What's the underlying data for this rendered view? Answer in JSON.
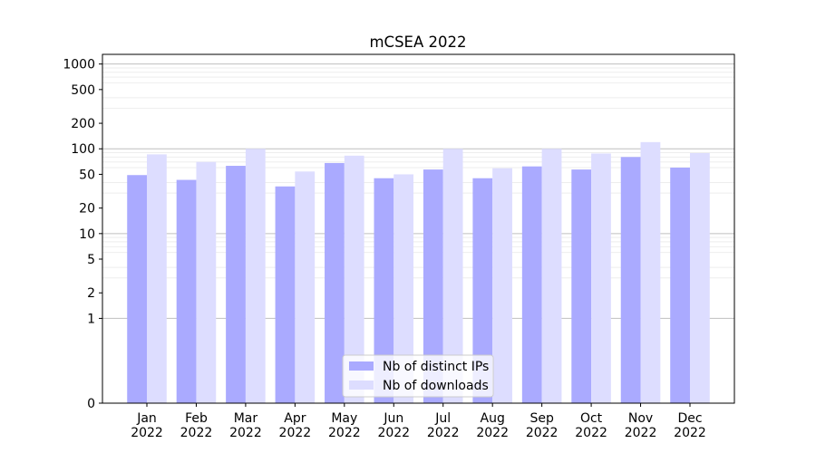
{
  "chart_data": {
    "type": "bar",
    "title": "mCSEA 2022",
    "xlabel": "",
    "ylabel": "",
    "y_scale": "symlog",
    "ylim": [
      0,
      1300
    ],
    "y_ticks": [
      0,
      1,
      2,
      5,
      10,
      20,
      50,
      100,
      200,
      500,
      1000
    ],
    "y_tick_labels": [
      "0",
      "1",
      "2",
      "5",
      "10",
      "20",
      "50",
      "100",
      "200",
      "500",
      "1000"
    ],
    "categories": [
      [
        "Jan",
        "2022"
      ],
      [
        "Feb",
        "2022"
      ],
      [
        "Mar",
        "2022"
      ],
      [
        "Apr",
        "2022"
      ],
      [
        "May",
        "2022"
      ],
      [
        "Jun",
        "2022"
      ],
      [
        "Jul",
        "2022"
      ],
      [
        "Aug",
        "2022"
      ],
      [
        "Sep",
        "2022"
      ],
      [
        "Oct",
        "2022"
      ],
      [
        "Nov",
        "2022"
      ],
      [
        "Dec",
        "2022"
      ]
    ],
    "series": [
      {
        "name": "Nb of distinct IPs",
        "color": "#aaaaff",
        "values": [
          49,
          43,
          63,
          36,
          68,
          45,
          57,
          45,
          62,
          57,
          80,
          60
        ]
      },
      {
        "name": "Nb of downloads",
        "color": "#ddddff",
        "values": [
          86,
          70,
          100,
          54,
          83,
          50,
          100,
          59,
          100,
          88,
          120,
          89
        ]
      }
    ],
    "grid": true,
    "legend_position": "bottom-center"
  }
}
